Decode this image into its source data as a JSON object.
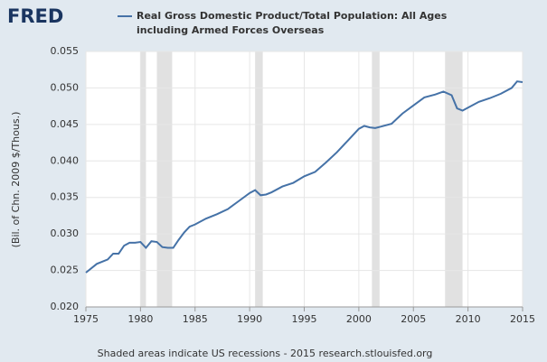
{
  "brand": "FRED",
  "chart_data": {
    "type": "line",
    "y_label": "(Bil. of Chn. 2009 $/Thous.)",
    "footer": "Shaded areas indicate US recessions - 2015 research.stlouisfed.org",
    "x": [
      1975,
      1976,
      1977,
      1977.5,
      1978,
      1978.5,
      1979,
      1979.5,
      1980,
      1980.5,
      1981,
      1981.5,
      1982,
      1982.5,
      1983,
      1983.5,
      1984,
      1984.5,
      1985,
      1986,
      1987,
      1988,
      1989,
      1990,
      1990.5,
      1991,
      1991.5,
      1992,
      1993,
      1994,
      1995,
      1996,
      1997,
      1998,
      1999,
      2000,
      2000.5,
      2001,
      2001.5,
      2002,
      2003,
      2004,
      2005,
      2006,
      2007,
      2007.75,
      2008.5,
      2009,
      2009.5,
      2010,
      2011,
      2012,
      2013,
      2014,
      2014.5,
      2015
    ],
    "series": [
      {
        "name": "Real Gross Domestic Product/Total Population: All Ages including Armed Forces Overseas",
        "color": "#4572a7",
        "values": [
          0.0247,
          0.0259,
          0.0265,
          0.0273,
          0.0273,
          0.0284,
          0.0288,
          0.0288,
          0.0289,
          0.0281,
          0.029,
          0.0289,
          0.0282,
          0.0281,
          0.0281,
          0.0292,
          0.0302,
          0.031,
          0.0313,
          0.0321,
          0.0327,
          0.0334,
          0.0345,
          0.0356,
          0.036,
          0.0353,
          0.0354,
          0.0357,
          0.0365,
          0.037,
          0.0379,
          0.0385,
          0.0398,
          0.0412,
          0.0428,
          0.0444,
          0.0448,
          0.0446,
          0.0445,
          0.0447,
          0.0451,
          0.0465,
          0.0476,
          0.0487,
          0.0491,
          0.0495,
          0.049,
          0.0472,
          0.0469,
          0.0473,
          0.0481,
          0.0486,
          0.0492,
          0.05,
          0.0509,
          0.0508
        ]
      }
    ],
    "recessions": [
      [
        1980,
        1980.5
      ],
      [
        1981.5,
        1982.9
      ],
      [
        1990.5,
        1991.2
      ],
      [
        2001.2,
        2001.9
      ],
      [
        2007.9,
        2009.5
      ]
    ],
    "recession_color": "#e1e1e1",
    "xlim": [
      1975,
      2015
    ],
    "xticks": [
      1975,
      1980,
      1985,
      1990,
      1995,
      2000,
      2005,
      2010,
      2015
    ],
    "ylim": [
      0.02,
      0.055
    ],
    "yticks": [
      {
        "value": 0.02,
        "label": "0.020"
      },
      {
        "value": 0.025,
        "label": "0.025"
      },
      {
        "value": 0.03,
        "label": "0.030"
      },
      {
        "value": 0.035,
        "label": "0.035"
      },
      {
        "value": 0.04,
        "label": "0.040"
      },
      {
        "value": 0.045,
        "label": "0.045"
      },
      {
        "value": 0.05,
        "label": "0.050"
      },
      {
        "value": 0.055,
        "label": "0.055"
      }
    ],
    "grid": true
  }
}
